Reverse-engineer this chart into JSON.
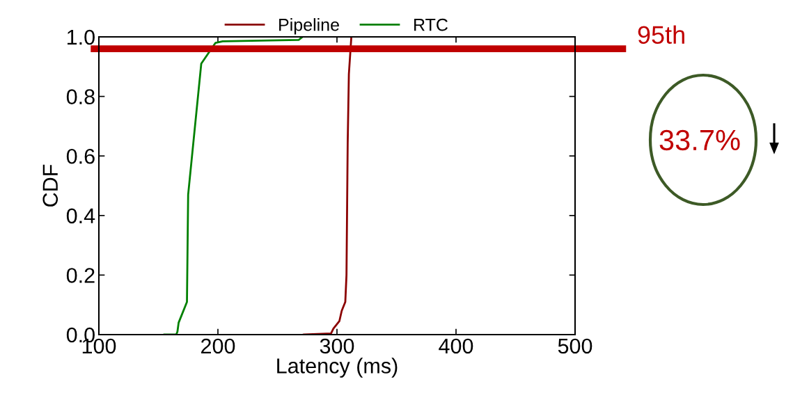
{
  "chart_data": {
    "type": "line",
    "xlabel": "Latency (ms)",
    "ylabel": "CDF",
    "series": [
      {
        "name": "Pipeline",
        "color": "#8b0000",
        "x": [
          272,
          295,
          297,
          302,
          304,
          307,
          308,
          309,
          310,
          312,
          312
        ],
        "values": [
          0,
          0.004,
          0.02,
          0.045,
          0.08,
          0.11,
          0.2,
          0.64,
          0.875,
          0.995,
          1.0
        ]
      },
      {
        "name": "RTC",
        "color": "#008000",
        "x": [
          155,
          165,
          166,
          167,
          174,
          175,
          186,
          198,
          204,
          268,
          271
        ],
        "values": [
          0,
          0,
          0.01,
          0.04,
          0.11,
          0.47,
          0.91,
          0.98,
          0.985,
          0.99,
          1.0
        ]
      }
    ],
    "xlim": [
      100,
      500
    ],
    "xticks": [
      100,
      200,
      300,
      400,
      500
    ],
    "ylim": [
      0,
      1.0
    ],
    "yticks": [
      {
        "value": 0,
        "label": "0.0"
      },
      0.2,
      0.4,
      0.6,
      0.8,
      {
        "value": 1,
        "label": "1.0"
      }
    ],
    "ref_lines": [
      {
        "axis": "y",
        "value": 0.96,
        "label": "95th",
        "color": "#c00000"
      }
    ],
    "annotations": [
      "33.7%"
    ],
    "legend": "top",
    "grid": false,
    "marker": "none",
    "line_style": "solid"
  }
}
